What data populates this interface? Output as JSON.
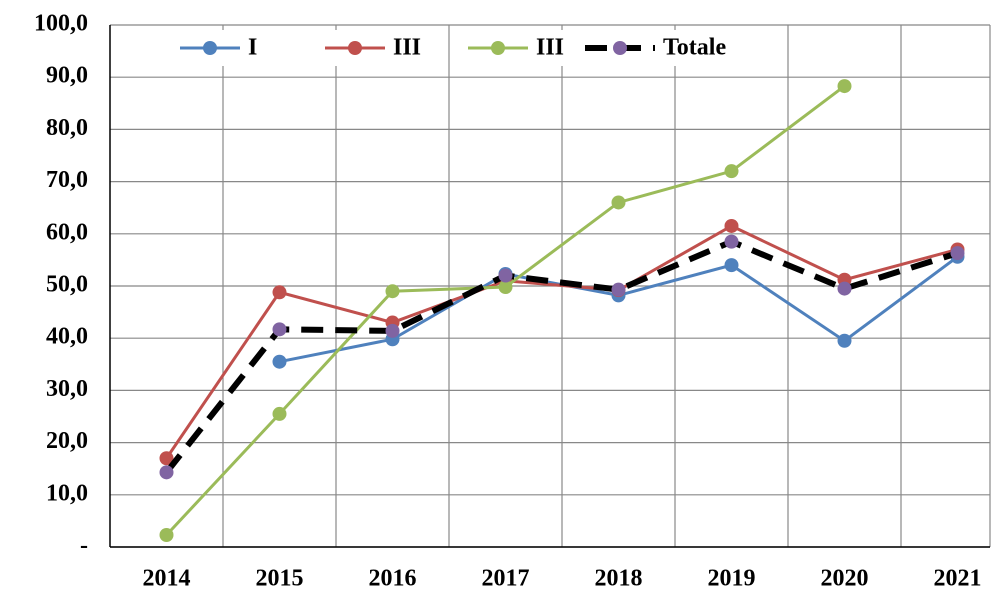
{
  "chart_data": {
    "type": "line",
    "categories": [
      "2014",
      "2015",
      "2016",
      "2017",
      "2018",
      "2019",
      "2020",
      "2021"
    ],
    "series": [
      {
        "name": "I",
        "color": "#4f81bd",
        "values": [
          null,
          35.5,
          39.8,
          52.3,
          48.2,
          54.0,
          39.5,
          55.6
        ]
      },
      {
        "name": "III",
        "color": "#c0504d",
        "values": [
          17.0,
          48.8,
          43.0,
          51.0,
          49.2,
          61.5,
          51.2,
          57.0
        ]
      },
      {
        "name": "III",
        "color": "#9bbb59",
        "values": [
          2.3,
          25.5,
          49.0,
          49.8,
          66.0,
          72.0,
          88.3,
          null
        ]
      },
      {
        "name": "Totale",
        "color": "#000000",
        "marker_color": "#8064a2",
        "dashed": true,
        "values": [
          14.3,
          41.7,
          41.4,
          52.0,
          49.3,
          58.5,
          49.5,
          56.3
        ]
      }
    ],
    "ylim": [
      0,
      100
    ],
    "yticks": [
      {
        "value": 0,
        "label": "-"
      },
      {
        "value": 10,
        "label": "10,0"
      },
      {
        "value": 20,
        "label": "20,0"
      },
      {
        "value": 30,
        "label": "30,0"
      },
      {
        "value": 40,
        "label": "40,0"
      },
      {
        "value": 50,
        "label": "50,0"
      },
      {
        "value": 60,
        "label": "60,0"
      },
      {
        "value": 70,
        "label": "70,0"
      },
      {
        "value": 80,
        "label": "80,0"
      },
      {
        "value": 90,
        "label": "90,0"
      },
      {
        "value": 100,
        "label": "100,0"
      }
    ],
    "grid": true
  }
}
